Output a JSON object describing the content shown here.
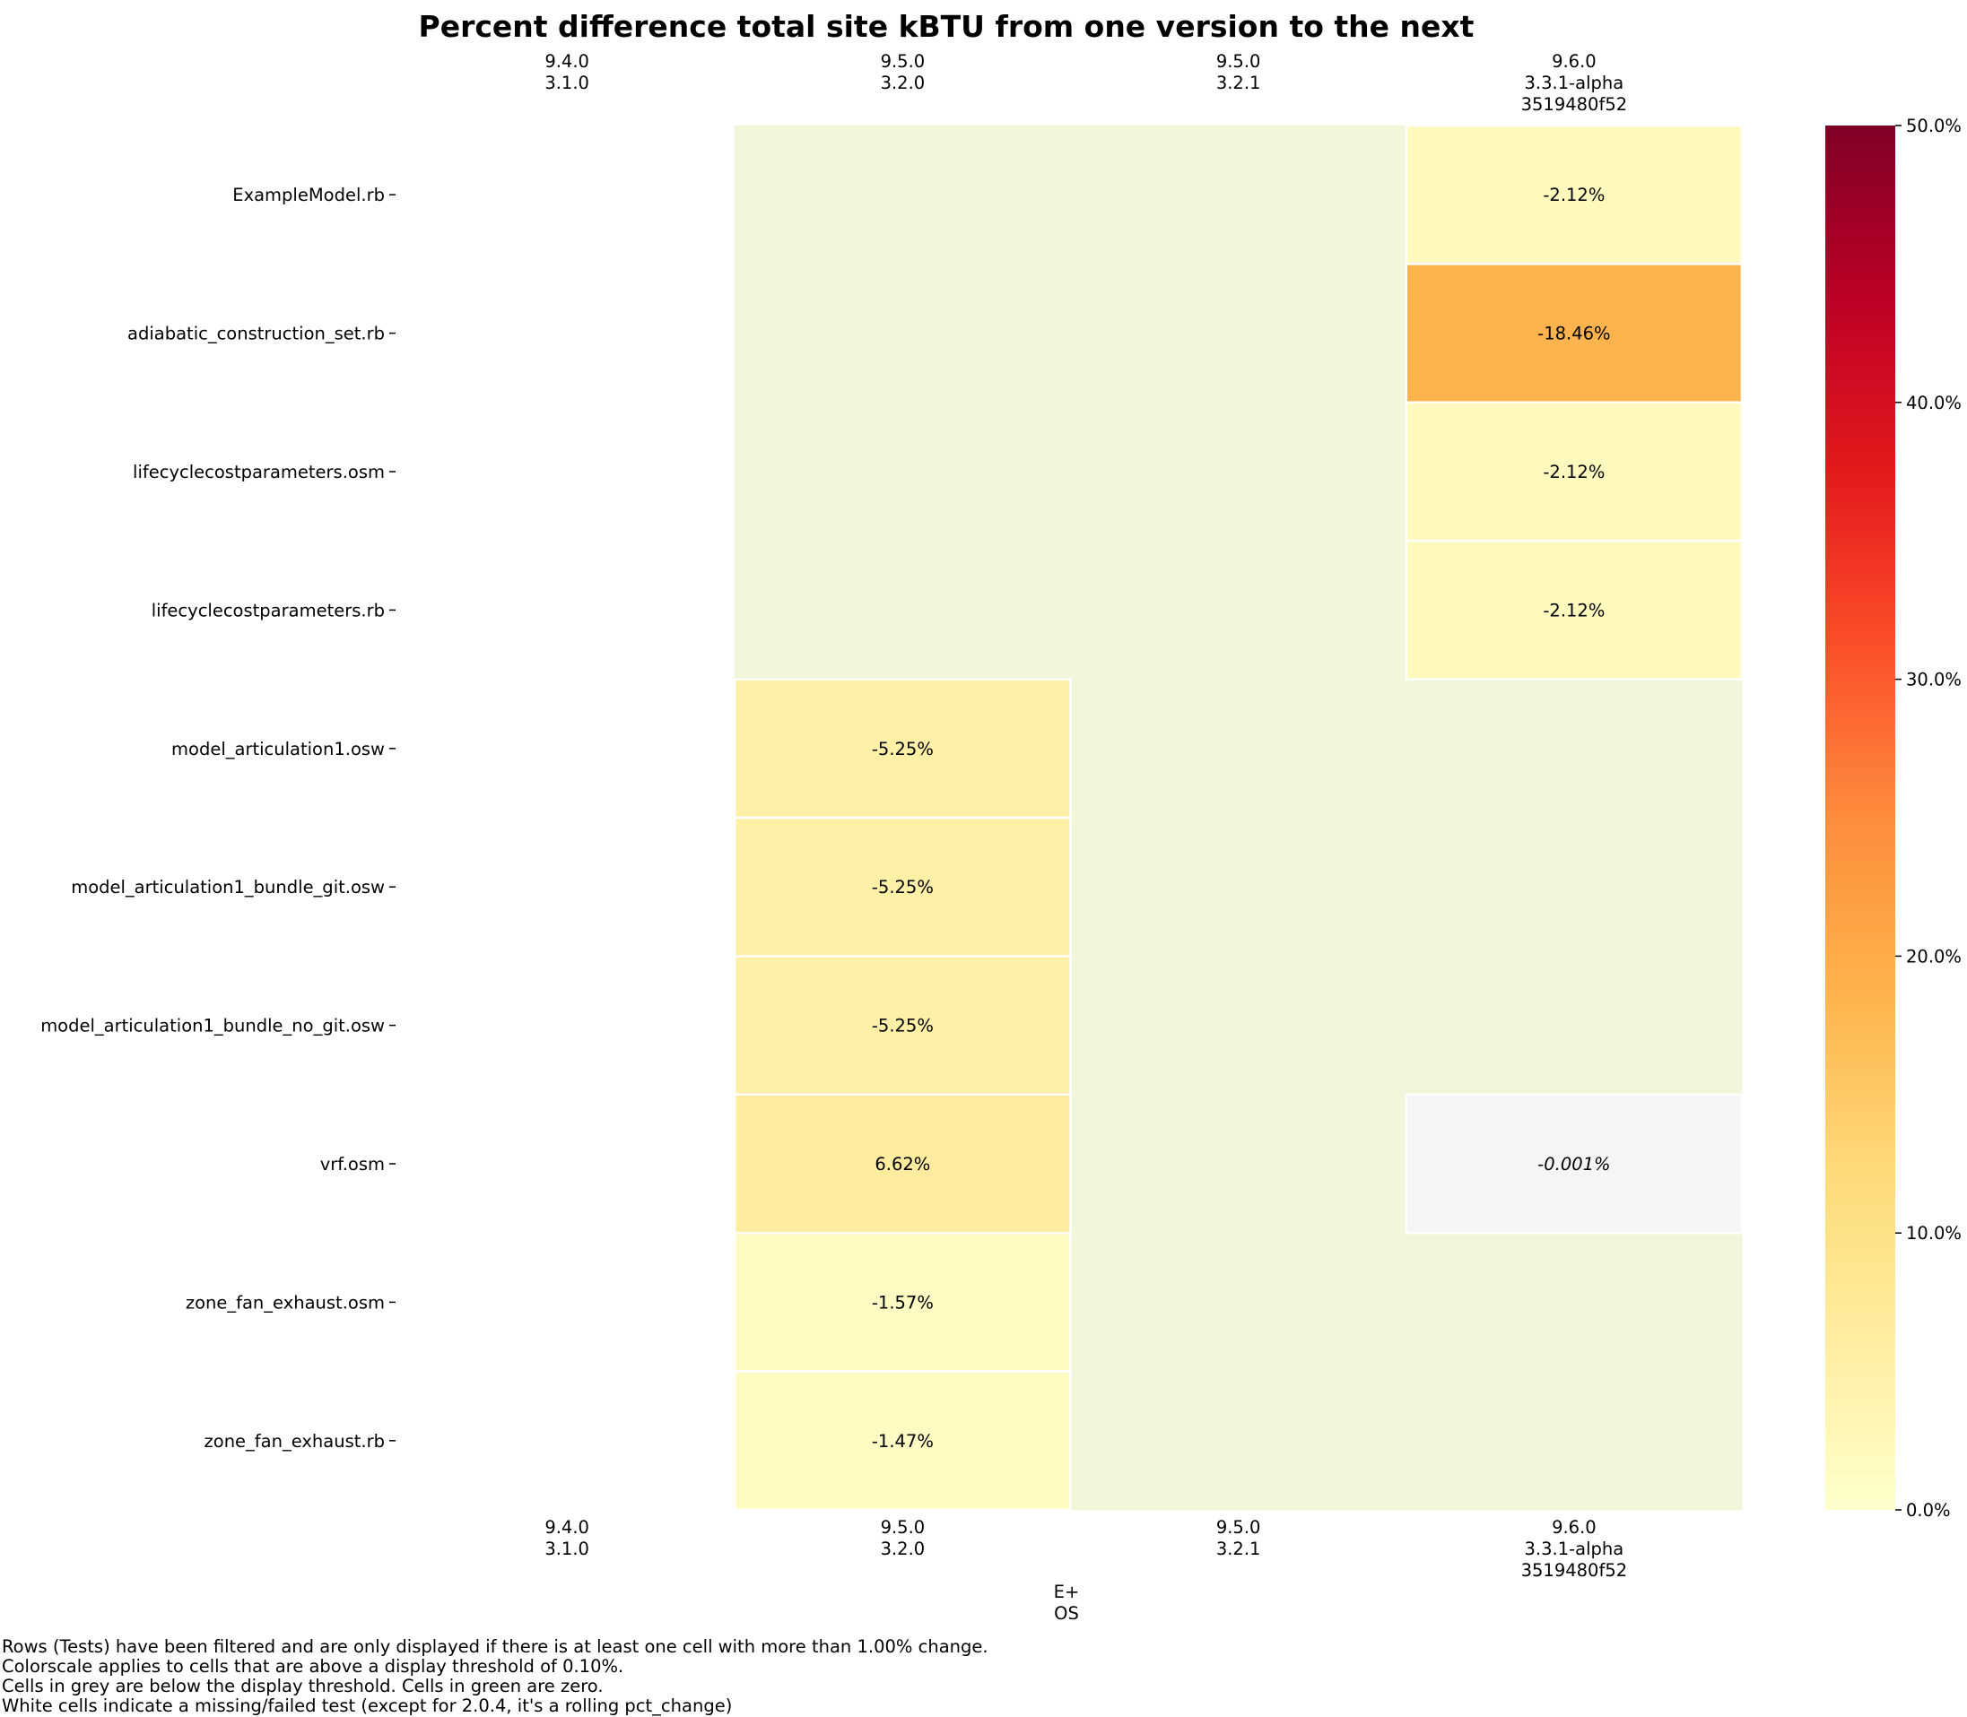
{
  "chart_data": {
    "type": "heatmap",
    "title": "Percent difference total site kBTU from one version to the next",
    "columns": [
      {
        "eplus": "9.4.0",
        "os": "3.1.0",
        "sha": ""
      },
      {
        "eplus": "9.5.0",
        "os": "3.2.0",
        "sha": ""
      },
      {
        "eplus": "9.5.0",
        "os": "3.2.1",
        "sha": ""
      },
      {
        "eplus": "9.6.0",
        "os": "3.3.1-alpha",
        "sha": "3519480f52"
      }
    ],
    "rows": [
      "ExampleModel.rb",
      "adiabatic_construction_set.rb",
      "lifecyclecostparameters.osm",
      "lifecyclecostparameters.rb",
      "model_articulation1.osw",
      "model_articulation1_bundle_git.osw",
      "model_articulation1_bundle_no_git.osw",
      "vrf.osm",
      "zone_fan_exhaust.osm",
      "zone_fan_exhaust.rb"
    ],
    "values": [
      [
        null,
        0,
        0,
        -2.12
      ],
      [
        null,
        0,
        0,
        -18.46
      ],
      [
        null,
        0,
        0,
        -2.12
      ],
      [
        null,
        0,
        0,
        -2.12
      ],
      [
        null,
        -5.25,
        0,
        0
      ],
      [
        null,
        -5.25,
        0,
        0
      ],
      [
        null,
        -5.25,
        0,
        0
      ],
      [
        null,
        6.62,
        0,
        -0.001
      ],
      [
        null,
        -1.57,
        0,
        0
      ],
      [
        null,
        -1.47,
        0,
        0
      ]
    ],
    "labels": [
      [
        "",
        "",
        "",
        "-2.12%"
      ],
      [
        "",
        "",
        "",
        "-18.46%"
      ],
      [
        "",
        "",
        "",
        "-2.12%"
      ],
      [
        "",
        "",
        "",
        "-2.12%"
      ],
      [
        "",
        "-5.25%",
        "",
        ""
      ],
      [
        "",
        "-5.25%",
        "",
        ""
      ],
      [
        "",
        "-5.25%",
        "",
        ""
      ],
      [
        "",
        "6.62%",
        "",
        "-0.001%"
      ],
      [
        "",
        "-1.57%",
        "",
        ""
      ],
      [
        "",
        "-1.47%",
        "",
        ""
      ]
    ],
    "xlabel": "E+\nOS",
    "colorbar": {
      "colormap": "YlOrRd",
      "range": [
        0,
        50
      ],
      "ticks": [
        "0.0%",
        "10.0%",
        "20.0%",
        "30.0%",
        "40.0%",
        "50.0%"
      ]
    },
    "threshold_pct": 0.1,
    "colors": {
      "zero": "#eff6d9",
      "below_threshold": "#f5f5f5",
      "missing": "#ffffff",
      "cell_border": "#ffffff"
    }
  },
  "notes": [
    "Rows (Tests) have been filtered and are only displayed if there is at least one cell with more than 1.00% change.",
    "Colorscale applies to cells that are above a display threshold of 0.10%.",
    "Cells in grey are below the display threshold. Cells in green are zero.",
    "White cells indicate a missing/failed test (except for 2.0.4, it's a rolling pct_change)"
  ]
}
